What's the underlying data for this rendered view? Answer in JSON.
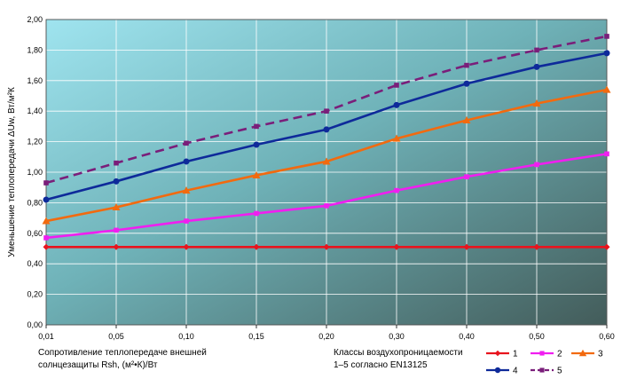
{
  "chart_data": {
    "type": "line",
    "ylabel": "Уменьшение теплопередачи ΔUw, Вт/м²К",
    "xlabel_line1": "Сопротивление теплопередаче внешней",
    "xlabel_line2": "солнцезащиты Rsh, (м²•К)/Вт",
    "legend_title_line1": "Классы воздухопроницаемости",
    "legend_title_line2": "1–5 согласно EN13125",
    "categories": [
      "0,01",
      "0,05",
      "0,10",
      "0,15",
      "0,20",
      "0,30",
      "0,40",
      "0,50",
      "0,60"
    ],
    "ylim": [
      0,
      2.0
    ],
    "y_ticks": [
      "0,00",
      "0,20",
      "0,40",
      "0,60",
      "0,80",
      "1,00",
      "1,20",
      "1,40",
      "1,60",
      "1,80",
      "2,00"
    ],
    "grid": true,
    "legend_position": "bottom-right",
    "series": [
      {
        "name": "1",
        "color": "#e8141e",
        "marker": "diamond",
        "dash": false,
        "values": [
          0.51,
          0.51,
          0.51,
          0.51,
          0.51,
          0.51,
          0.51,
          0.51,
          0.51
        ]
      },
      {
        "name": "2",
        "color": "#f01ef0",
        "marker": "square",
        "dash": false,
        "values": [
          0.57,
          0.62,
          0.68,
          0.73,
          0.78,
          0.88,
          0.97,
          1.05,
          1.12
        ]
      },
      {
        "name": "3",
        "color": "#f26a0f",
        "marker": "triangle",
        "dash": false,
        "values": [
          0.68,
          0.77,
          0.88,
          0.98,
          1.07,
          1.22,
          1.34,
          1.45,
          1.54
        ]
      },
      {
        "name": "4",
        "color": "#0e2a9a",
        "marker": "circle",
        "dash": false,
        "values": [
          0.82,
          0.94,
          1.07,
          1.18,
          1.28,
          1.44,
          1.58,
          1.69,
          1.78
        ]
      },
      {
        "name": "5",
        "color": "#7a1e7a",
        "marker": "square",
        "dash": true,
        "values": [
          0.93,
          1.06,
          1.19,
          1.3,
          1.4,
          1.57,
          1.7,
          1.8,
          1.89
        ]
      }
    ]
  }
}
